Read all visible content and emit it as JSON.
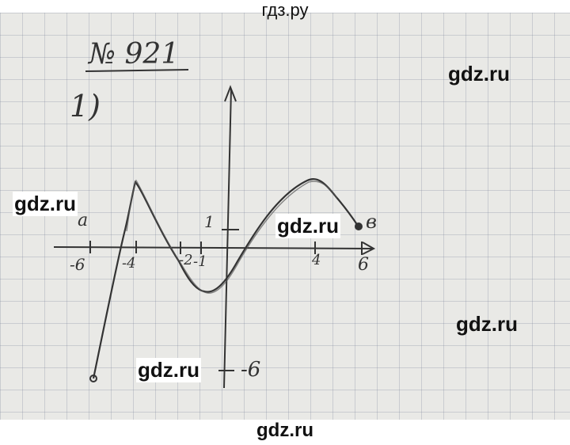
{
  "watermarks": {
    "top": "гдз.ру",
    "bottom": "gdz.ru",
    "right_top": "gdz.ru",
    "left_mid": "gdz.ru",
    "center": "gdz.ru",
    "right_mid": "gdz.ru",
    "bottom_left": "gdz.ru"
  },
  "problem": {
    "number": "№ 921",
    "part": "1)"
  },
  "graph": {
    "left_end_label": "a",
    "right_end_label": "в",
    "x_ticks": [
      "-6",
      "-4",
      "-2",
      "-1",
      "4",
      "6"
    ],
    "y_ticks": [
      "1",
      "-6"
    ]
  },
  "colors": {
    "paper": "#e9e9e6",
    "ink": "#333333"
  }
}
